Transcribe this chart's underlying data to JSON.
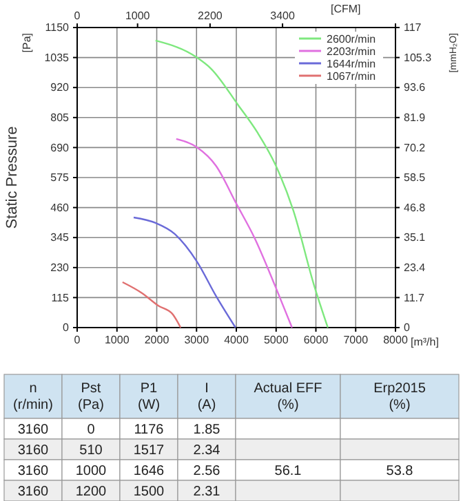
{
  "chart_data": [
    {
      "type": "line",
      "ylabel": "Static Pressure",
      "xlabel": "[m³/h]",
      "x2label": "[CFM]",
      "y2label": "[mmH₂O]",
      "annotations": [
        "[Pa]"
      ],
      "xlim": [
        0,
        8000
      ],
      "xticks": [
        0,
        1000,
        2000,
        3000,
        4000,
        5000,
        6000,
        7000,
        8000
      ],
      "x2lim": [
        0,
        5270
      ],
      "x2ticks": [
        0,
        1000,
        2200,
        3400
      ],
      "ylim": [
        0,
        1150
      ],
      "yticks": [
        0,
        115,
        230,
        345,
        460,
        575,
        690,
        805,
        920,
        1035,
        1150
      ],
      "y2lim": [
        0,
        117
      ],
      "y2ticks": [
        0,
        11.7,
        23.4,
        35.1,
        46.8,
        58.5,
        70.2,
        81.9,
        93.6,
        105.3,
        117
      ],
      "grid": true,
      "legend": "top right",
      "marker": "none",
      "line_style": "solid",
      "series": [
        {
          "name": "2600r/min",
          "color": "#7ee87e",
          "x": [
            1970,
            3010,
            3360,
            4050,
            4530,
            4980,
            5430,
            5950,
            6300
          ],
          "values": [
            1100,
            1035,
            993,
            852,
            748,
            625,
            450,
            164,
            0
          ]
        },
        {
          "name": "2203r/min",
          "color": "#e070e0",
          "x": [
            2490,
            3010,
            3490,
            4000,
            4460,
            4980,
            5400
          ],
          "values": [
            723,
            691,
            620,
            475,
            343,
            158,
            0
          ]
        },
        {
          "name": "1644r/min",
          "color": "#6a6ad8",
          "x": [
            1420,
            1970,
            2450,
            3010,
            3490,
            3980
          ],
          "values": [
            422,
            401,
            359,
            253,
            121,
            0
          ]
        },
        {
          "name": "1067r/min",
          "color": "#e07070",
          "x": [
            1140,
            1630,
            2040,
            2390,
            2600
          ],
          "values": [
            174,
            132,
            84,
            53,
            0
          ]
        }
      ]
    },
    {
      "type": "other",
      "categories": [
        "n (r/min)",
        "Pst (Pa)",
        "P1 (W)",
        "I (A)",
        "Actual EFF (%)",
        "Erp2015 (%)"
      ],
      "cell_labels": [
        [
          "3160",
          "0",
          "1176",
          "1.85",
          null,
          null
        ],
        [
          "3160",
          "510",
          "1517",
          "2.34",
          null,
          null
        ],
        [
          "3160",
          "1000",
          "1646",
          "2.56",
          "56.1",
          "53.8"
        ],
        [
          "3160",
          "1200",
          "1500",
          "2.31",
          null,
          null
        ]
      ]
    }
  ]
}
